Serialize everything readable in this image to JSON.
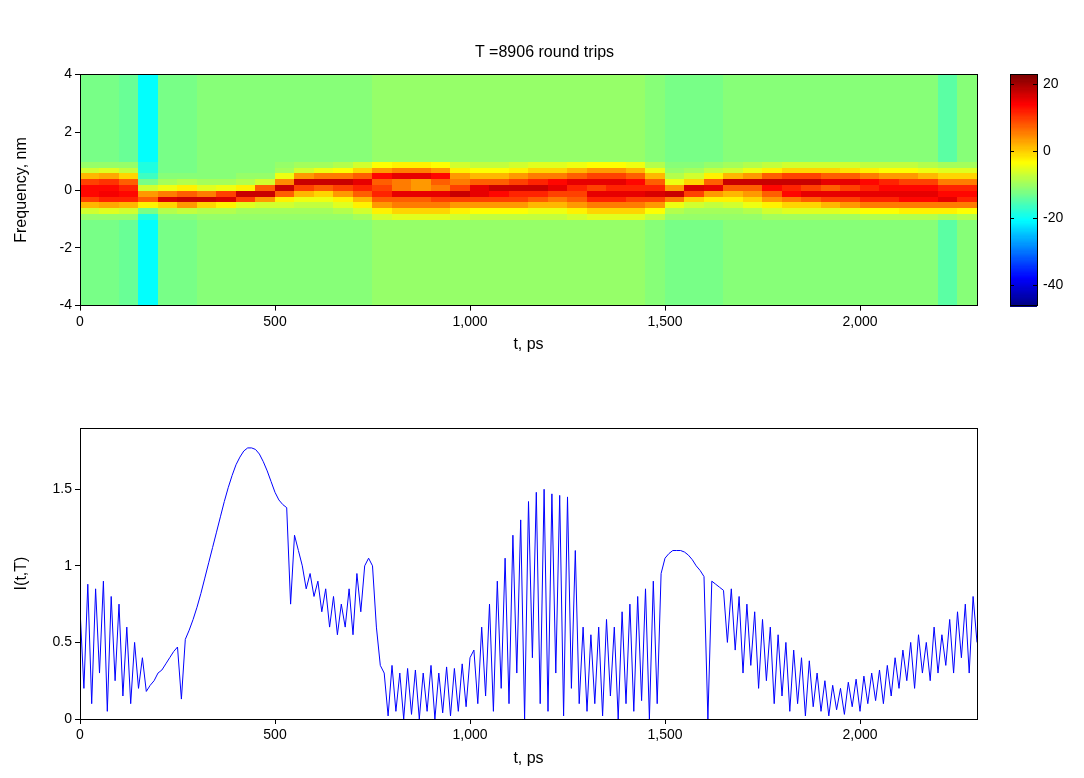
{
  "chart_data": [
    {
      "type": "heatmap",
      "title": "T =8906 round trips",
      "x_label": "t, ps",
      "y_label": "Frequency, nm",
      "xlim": [
        0,
        2300
      ],
      "ylim": [
        -4,
        4
      ],
      "xticks": [
        0,
        500,
        {
          "value": 1000,
          "label": "1,000"
        },
        {
          "value": 1500,
          "label": "1,500"
        },
        {
          "value": 2000,
          "label": "2,000"
        }
      ],
      "yticks": [
        -4,
        -2,
        0,
        2,
        4
      ],
      "grid": false,
      "x_edges": [
        0,
        50,
        100,
        150,
        200,
        250,
        300,
        350,
        400,
        450,
        500,
        550,
        600,
        650,
        700,
        750,
        800,
        850,
        900,
        950,
        1000,
        1050,
        1100,
        1150,
        1200,
        1250,
        1300,
        1350,
        1400,
        1450,
        1500,
        1550,
        1600,
        1650,
        1700,
        1750,
        1800,
        1850,
        1900,
        1950,
        2000,
        2050,
        2100,
        2150,
        2200,
        2250,
        2300
      ],
      "y_edges": [
        -4,
        -1,
        -0.8,
        -0.6,
        -0.4,
        -0.2,
        0,
        0.2,
        0.4,
        0.6,
        0.8,
        1,
        4
      ],
      "cells": [
        [
          -12,
          -10,
          -6,
          2,
          10,
          14,
          14,
          10,
          2,
          -6,
          -10,
          -12
        ],
        [
          -12,
          -10,
          -5,
          3,
          12,
          15,
          14,
          11,
          3,
          -5,
          -10,
          -12
        ],
        [
          -13,
          -10,
          -6,
          2,
          12,
          14,
          12,
          8,
          0,
          -7,
          -10,
          -13
        ],
        [
          -20,
          -18,
          -12,
          -2,
          8,
          4,
          -6,
          -12,
          -16,
          -18,
          -18,
          -20
        ],
        [
          -12,
          -11,
          -8,
          0,
          17,
          6,
          -4,
          -9,
          -11,
          -12,
          -12,
          -12
        ],
        [
          -12,
          -11,
          -7,
          4,
          18,
          8,
          -2,
          -8,
          -11,
          -12,
          -12,
          -12
        ],
        [
          -11,
          -10,
          -8,
          0,
          18,
          6,
          -5,
          -9,
          -11,
          -11,
          -11,
          -11
        ],
        [
          -11,
          -10,
          -8,
          -2,
          17,
          10,
          -4,
          -9,
          -11,
          -11,
          -11,
          -11
        ],
        [
          -11,
          -10,
          -9,
          -5,
          10,
          18,
          -2,
          -8,
          -10,
          -11,
          -11,
          -11
        ],
        [
          -11,
          -10,
          -9,
          -6,
          4,
          18,
          8,
          -6,
          -10,
          -11,
          -11,
          -11
        ],
        [
          -11,
          -10,
          -9,
          -6,
          -2,
          8,
          18,
          5,
          -4,
          -9,
          -10,
          -11
        ],
        [
          -11,
          -10,
          -9,
          -7,
          -4,
          2,
          10,
          18,
          4,
          -6,
          -9,
          -11
        ],
        [
          -11,
          -10,
          -9,
          -7,
          -4,
          0,
          8,
          18,
          6,
          -4,
          -9,
          -11
        ],
        [
          -11,
          -10,
          -8,
          -5,
          -2,
          4,
          10,
          18,
          6,
          -3,
          -8,
          -11
        ],
        [
          -11,
          -9,
          -6,
          -2,
          2,
          8,
          12,
          16,
          8,
          0,
          -6,
          -11
        ],
        [
          -10,
          -6,
          -2,
          4,
          8,
          12,
          10,
          8,
          14,
          4,
          -3,
          -10
        ],
        [
          -10,
          -5,
          0,
          6,
          8,
          16,
          6,
          6,
          16,
          6,
          -2,
          -10
        ],
        [
          -10,
          -5,
          0,
          6,
          8,
          16,
          4,
          4,
          16,
          6,
          -2,
          -10
        ],
        [
          -10,
          -5,
          0,
          6,
          10,
          16,
          6,
          8,
          14,
          4,
          -3,
          -10
        ],
        [
          -10,
          -6,
          -2,
          4,
          10,
          18,
          10,
          6,
          4,
          -2,
          -6,
          -10
        ],
        [
          -10,
          -7,
          -3,
          4,
          10,
          16,
          16,
          8,
          2,
          -3,
          -7,
          -10
        ],
        [
          -10,
          -7,
          -3,
          4,
          10,
          14,
          18,
          8,
          2,
          -3,
          -7,
          -10
        ],
        [
          -10,
          -7,
          -3,
          4,
          10,
          12,
          18,
          10,
          4,
          -2,
          -6,
          -10
        ],
        [
          -10,
          -7,
          -4,
          2,
          8,
          12,
          18,
          12,
          6,
          0,
          -5,
          -10
        ],
        [
          -10,
          -7,
          -4,
          2,
          6,
          10,
          16,
          14,
          6,
          0,
          -5,
          -10
        ],
        [
          -10,
          -6,
          -2,
          4,
          8,
          10,
          12,
          16,
          8,
          2,
          -4,
          -10
        ],
        [
          -10,
          -5,
          0,
          6,
          12,
          16,
          10,
          16,
          10,
          4,
          -3,
          -10
        ],
        [
          -10,
          -5,
          0,
          6,
          12,
          16,
          12,
          16,
          10,
          4,
          -3,
          -10
        ],
        [
          -10,
          -5,
          0,
          6,
          10,
          16,
          12,
          14,
          8,
          2,
          -4,
          -10
        ],
        [
          -11,
          -7,
          -3,
          4,
          10,
          17,
          12,
          8,
          2,
          -4,
          -8,
          -11
        ],
        [
          -12,
          -10,
          -8,
          -4,
          6,
          18,
          4,
          -4,
          -8,
          -10,
          -11,
          -12
        ],
        [
          -12,
          -10,
          -9,
          -6,
          0,
          10,
          17,
          0,
          -6,
          -9,
          -11,
          -12
        ],
        [
          -12,
          -10,
          -9,
          -7,
          -2,
          4,
          16,
          8,
          -2,
          -7,
          -10,
          -12
        ],
        [
          -11,
          -10,
          -9,
          -6,
          -2,
          2,
          8,
          18,
          2,
          -6,
          -9,
          -11
        ],
        [
          -11,
          -10,
          -8,
          -4,
          0,
          4,
          8,
          18,
          4,
          -4,
          -8,
          -11
        ],
        [
          -11,
          -9,
          -6,
          -2,
          4,
          8,
          14,
          18,
          8,
          -2,
          -7,
          -11
        ],
        [
          -11,
          -9,
          -5,
          0,
          6,
          14,
          12,
          18,
          10,
          0,
          -6,
          -11
        ],
        [
          -11,
          -9,
          -5,
          0,
          8,
          16,
          10,
          18,
          10,
          0,
          -6,
          -11
        ],
        [
          -11,
          -9,
          -5,
          2,
          10,
          16,
          8,
          16,
          8,
          0,
          -6,
          -11
        ],
        [
          -11,
          -9,
          -4,
          4,
          10,
          16,
          10,
          16,
          8,
          -1,
          -6,
          -11
        ],
        [
          -11,
          -8,
          -3,
          6,
          12,
          16,
          12,
          14,
          6,
          -2,
          -7,
          -11
        ],
        [
          -11,
          -8,
          -3,
          6,
          12,
          16,
          14,
          12,
          4,
          -3,
          -7,
          -11
        ],
        [
          -11,
          -8,
          -2,
          6,
          14,
          16,
          14,
          10,
          4,
          -3,
          -7,
          -11
        ],
        [
          -11,
          -8,
          -2,
          6,
          14,
          16,
          14,
          10,
          2,
          -4,
          -8,
          -11
        ],
        [
          -14,
          -9,
          -2,
          6,
          16,
          14,
          12,
          6,
          0,
          -5,
          -9,
          -14
        ],
        [
          -11,
          -8,
          -3,
          6,
          12,
          14,
          12,
          6,
          0,
          -5,
          -9,
          -11
        ]
      ],
      "colorbar": {
        "range": [
          -46,
          23
        ],
        "ticks": [
          -40,
          -20,
          0,
          20
        ]
      }
    },
    {
      "type": "line",
      "x_label": "t, ps",
      "y_label": "I(t,T)",
      "color": "#0000ff",
      "xlim": [
        0,
        2300
      ],
      "ylim": [
        0,
        1.9
      ],
      "xticks": [
        0,
        500,
        {
          "value": 1000,
          "label": "1,000"
        },
        {
          "value": 1500,
          "label": "1,500"
        },
        {
          "value": 2000,
          "label": "2,000"
        }
      ],
      "yticks": [
        0,
        0.5,
        1,
        1.5
      ],
      "grid": false,
      "x": [
        0,
        10,
        20,
        30,
        40,
        50,
        60,
        70,
        80,
        90,
        100,
        110,
        120,
        130,
        140,
        150,
        160,
        170,
        180,
        190,
        200,
        210,
        220,
        230,
        240,
        250,
        260,
        270,
        280,
        290,
        300,
        310,
        320,
        330,
        340,
        350,
        360,
        370,
        380,
        390,
        400,
        410,
        420,
        430,
        440,
        450,
        460,
        470,
        480,
        490,
        500,
        510,
        520,
        530,
        540,
        550,
        560,
        570,
        580,
        590,
        600,
        610,
        620,
        630,
        640,
        650,
        660,
        670,
        680,
        690,
        700,
        710,
        720,
        730,
        740,
        750,
        760,
        770,
        780,
        790,
        800,
        810,
        820,
        830,
        840,
        850,
        860,
        870,
        880,
        890,
        900,
        910,
        920,
        930,
        940,
        950,
        960,
        970,
        980,
        990,
        1000,
        1010,
        1020,
        1030,
        1040,
        1050,
        1060,
        1070,
        1080,
        1090,
        1100,
        1110,
        1120,
        1130,
        1140,
        1150,
        1160,
        1170,
        1180,
        1190,
        1200,
        1210,
        1220,
        1230,
        1240,
        1250,
        1260,
        1270,
        1280,
        1290,
        1300,
        1310,
        1320,
        1330,
        1340,
        1350,
        1360,
        1370,
        1380,
        1390,
        1400,
        1410,
        1420,
        1430,
        1440,
        1450,
        1460,
        1470,
        1480,
        1490,
        1500,
        1510,
        1520,
        1530,
        1540,
        1550,
        1560,
        1570,
        1580,
        1590,
        1600,
        1610,
        1620,
        1630,
        1640,
        1650,
        1660,
        1670,
        1680,
        1690,
        1700,
        1710,
        1720,
        1730,
        1740,
        1750,
        1760,
        1770,
        1780,
        1790,
        1800,
        1810,
        1820,
        1830,
        1840,
        1850,
        1860,
        1870,
        1880,
        1890,
        1900,
        1910,
        1920,
        1930,
        1940,
        1950,
        1960,
        1970,
        1980,
        1990,
        2000,
        2010,
        2020,
        2030,
        2040,
        2050,
        2060,
        2070,
        2080,
        2090,
        2100,
        2110,
        2120,
        2130,
        2140,
        2150,
        2160,
        2170,
        2180,
        2190,
        2200,
        2210,
        2220,
        2230,
        2240,
        2250,
        2260,
        2270,
        2280,
        2290,
        2300
      ],
      "values": [
        0.72,
        0.2,
        0.88,
        0.1,
        0.85,
        0.3,
        0.9,
        0.05,
        0.8,
        0.25,
        0.75,
        0.15,
        0.6,
        0.1,
        0.5,
        0.2,
        0.4,
        0.18,
        0.22,
        0.25,
        0.3,
        0.32,
        0.36,
        0.4,
        0.44,
        0.47,
        0.13,
        0.52,
        0.58,
        0.65,
        0.73,
        0.82,
        0.92,
        1.02,
        1.12,
        1.22,
        1.32,
        1.42,
        1.51,
        1.59,
        1.66,
        1.71,
        1.75,
        1.77,
        1.77,
        1.76,
        1.73,
        1.68,
        1.62,
        1.55,
        1.48,
        1.43,
        1.4,
        1.38,
        0.75,
        1.2,
        1.1,
        1.0,
        0.85,
        0.95,
        0.8,
        0.9,
        0.7,
        0.85,
        0.6,
        0.8,
        0.55,
        0.75,
        0.6,
        0.85,
        0.55,
        0.95,
        0.7,
        1.0,
        1.05,
        1.0,
        0.6,
        0.35,
        0.3,
        0.02,
        0.35,
        0.05,
        0.3,
        0.0,
        0.33,
        0.03,
        0.32,
        0.0,
        0.3,
        0.05,
        0.35,
        0.0,
        0.3,
        0.04,
        0.34,
        0.02,
        0.33,
        0.05,
        0.36,
        0.08,
        0.4,
        0.45,
        0.1,
        0.6,
        0.15,
        0.75,
        0.05,
        0.9,
        0.2,
        1.05,
        0.1,
        1.2,
        0.3,
        1.3,
        0.0,
        1.42,
        0.4,
        1.48,
        0.1,
        1.5,
        0.05,
        1.47,
        0.3,
        1.46,
        0.02,
        1.45,
        0.2,
        1.1,
        0.1,
        0.6,
        0.05,
        0.55,
        0.1,
        0.6,
        0.02,
        0.65,
        0.15,
        0.6,
        0.0,
        0.7,
        0.1,
        0.75,
        0.05,
        0.8,
        0.12,
        0.85,
        0.0,
        0.9,
        0.1,
        0.95,
        1.05,
        1.08,
        1.1,
        1.1,
        1.1,
        1.09,
        1.07,
        1.04,
        1.0,
        0.97,
        0.93,
        0.0,
        0.9,
        0.88,
        0.86,
        0.84,
        0.5,
        0.85,
        0.45,
        0.8,
        0.3,
        0.75,
        0.35,
        0.7,
        0.2,
        0.65,
        0.25,
        0.6,
        0.1,
        0.55,
        0.15,
        0.5,
        0.05,
        0.45,
        0.1,
        0.4,
        0.02,
        0.38,
        0.08,
        0.3,
        0.05,
        0.25,
        0.02,
        0.22,
        0.06,
        0.2,
        0.03,
        0.24,
        0.08,
        0.26,
        0.05,
        0.28,
        0.1,
        0.3,
        0.12,
        0.32,
        0.1,
        0.35,
        0.15,
        0.4,
        0.2,
        0.45,
        0.25,
        0.5,
        0.2,
        0.55,
        0.3,
        0.5,
        0.25,
        0.6,
        0.3,
        0.55,
        0.35,
        0.65,
        0.3,
        0.7,
        0.4,
        0.75,
        0.3,
        0.8,
        0.5
      ]
    }
  ]
}
